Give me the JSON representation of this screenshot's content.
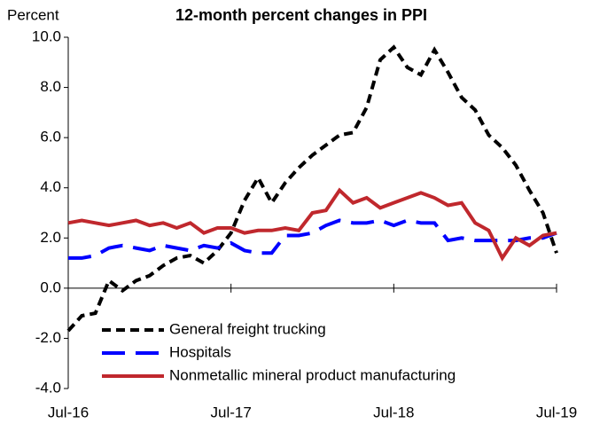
{
  "chart_data": {
    "type": "line",
    "title": "12-month percent changes in PPI",
    "ylabel": "Percent",
    "categories": [
      "Jul-16",
      null,
      null,
      null,
      null,
      null,
      null,
      null,
      null,
      null,
      null,
      null,
      "Jul-17",
      null,
      null,
      null,
      null,
      null,
      null,
      null,
      null,
      null,
      null,
      null,
      "Jul-18",
      null,
      null,
      null,
      null,
      null,
      null,
      null,
      null,
      null,
      null,
      null,
      "Jul-19"
    ],
    "series": [
      {
        "name": "General freight trucking",
        "color": "#000000",
        "dash": "dashed",
        "values": [
          -1.7,
          -1.1,
          -1.0,
          0.3,
          -0.1,
          0.3,
          0.5,
          0.9,
          1.2,
          1.3,
          1.0,
          1.5,
          2.2,
          3.5,
          4.4,
          3.4,
          4.2,
          4.8,
          5.3,
          5.7,
          6.1,
          6.2,
          7.2,
          9.1,
          9.6,
          8.8,
          8.5,
          9.5,
          8.6,
          7.6,
          7.1,
          6.1,
          5.6,
          4.9,
          3.9,
          3.0,
          1.4
        ]
      },
      {
        "name": "Hospitals",
        "color": "#0000ff",
        "dash": "longdash",
        "values": [
          1.2,
          1.2,
          1.3,
          1.6,
          1.7,
          1.6,
          1.5,
          1.7,
          1.6,
          1.5,
          1.7,
          1.6,
          1.8,
          1.5,
          1.4,
          1.4,
          2.1,
          2.1,
          2.2,
          2.5,
          2.7,
          2.6,
          2.6,
          2.7,
          2.5,
          2.7,
          2.6,
          2.6,
          1.9,
          2.0,
          1.9,
          1.9,
          1.9,
          1.9,
          2.0,
          2.0,
          2.2
        ]
      },
      {
        "name": "Nonmetallic mineral product manufacturing",
        "color": "#c0282d",
        "dash": "solid",
        "values": [
          2.6,
          2.7,
          2.6,
          2.5,
          2.6,
          2.7,
          2.5,
          2.6,
          2.4,
          2.6,
          2.2,
          2.4,
          2.4,
          2.2,
          2.3,
          2.3,
          2.4,
          2.3,
          3.0,
          3.1,
          3.9,
          3.4,
          3.6,
          3.2,
          3.4,
          3.6,
          3.8,
          3.6,
          3.3,
          3.4,
          2.6,
          2.3,
          1.2,
          2.0,
          1.7,
          2.1,
          2.2
        ]
      }
    ],
    "ylim": [
      -4,
      10
    ],
    "yticks": [
      {
        "value": -4,
        "label": "-4.0"
      },
      {
        "value": -2,
        "label": "-2.0"
      },
      {
        "value": 0,
        "label": "0.0"
      },
      {
        "value": 2,
        "label": "2.0"
      },
      {
        "value": 4,
        "label": "4.0"
      },
      {
        "value": 6,
        "label": "6.0"
      },
      {
        "value": 8,
        "label": "8.0"
      },
      {
        "value": 10,
        "label": "10.0"
      }
    ],
    "grid": false,
    "legend": "lower left"
  }
}
